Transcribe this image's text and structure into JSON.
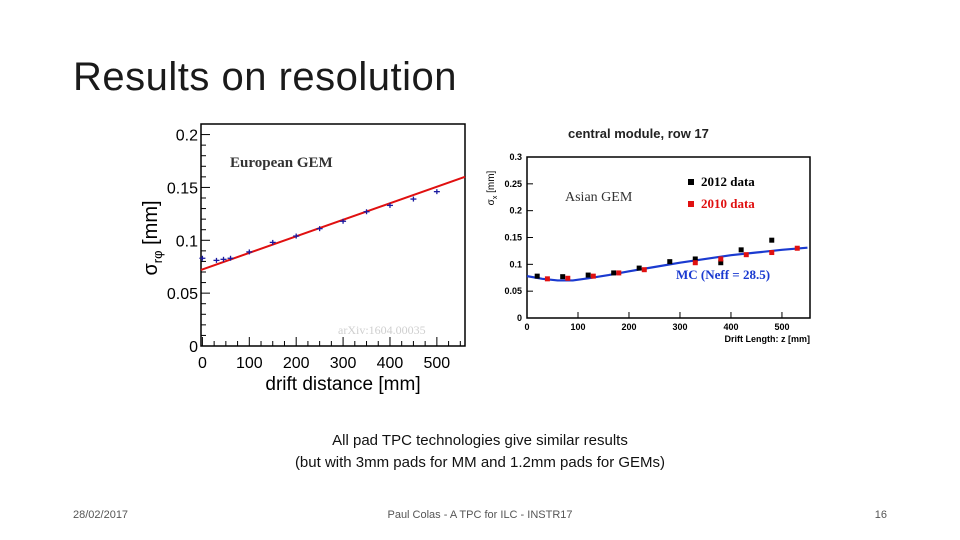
{
  "slide": {
    "title": "Results on resolution",
    "caption_line1": "All pad TPC technologies give similar results",
    "caption_line2": "(but with 3mm pads for MM and 1.2mm pads for GEMs)",
    "footer_date": "28/02/2017",
    "footer_center": "Paul Colas - A TPC for ILC - INSTR17",
    "footer_page": "16"
  },
  "chart_data": [
    {
      "type": "scatter",
      "panel_label": "European GEM",
      "watermark": "arXiv:1604.00035",
      "xlabel": "drift distance [mm]",
      "ylabel_main": "σ",
      "ylabel_sub": "rφ",
      "ylabel_unit": " [mm]",
      "xlim": [
        -3,
        560
      ],
      "ylim": [
        0,
        0.21
      ],
      "xticks": [
        0,
        100,
        200,
        300,
        400,
        500
      ],
      "yticks": [
        0,
        0.05,
        0.1,
        0.15,
        0.2
      ],
      "ytick_labels": [
        "0",
        "0.05",
        "0.1",
        "0.15",
        "0.2"
      ],
      "colors": {
        "points": "#1a1aa0",
        "fit": "#e01010"
      },
      "points": {
        "x": [
          0,
          30,
          45,
          60,
          100,
          150,
          200,
          250,
          300,
          350,
          400,
          450,
          500
        ],
        "y": [
          0.083,
          0.081,
          0.082,
          0.083,
          0.089,
          0.098,
          0.104,
          0.111,
          0.118,
          0.127,
          0.133,
          0.139,
          0.146
        ]
      },
      "fit": {
        "x": [
          -3,
          560
        ],
        "y": [
          0.072,
          0.16
        ]
      }
    },
    {
      "type": "scatter",
      "title": "central module, row 17",
      "panel_label": "Asian GEM",
      "xlabel": "Drift Length: z [mm]",
      "ylabel_main": "σ",
      "ylabel_sub": "x",
      "ylabel_unit": " [mm]",
      "xlim": [
        0,
        555
      ],
      "ylim": [
        0,
        0.3
      ],
      "xticks": [
        0,
        100,
        200,
        300,
        400,
        500
      ],
      "yticks": [
        0,
        0.05,
        0.1,
        0.15,
        0.2,
        0.25,
        0.3
      ],
      "ytick_labels": [
        "0",
        "0.05",
        "0.1",
        "0.15",
        "0.2",
        "0.25",
        "0.3"
      ],
      "legend_position": "top-right",
      "series": [
        {
          "name": "2012 data",
          "color": "#000000",
          "x": [
            20,
            70,
            120,
            170,
            220,
            280,
            330,
            380,
            420,
            480
          ],
          "y": [
            0.078,
            0.077,
            0.08,
            0.084,
            0.093,
            0.105,
            0.11,
            0.103,
            0.127,
            0.145
          ]
        },
        {
          "name": "2010 data",
          "color": "#e01010",
          "x": [
            40,
            80,
            130,
            180,
            230,
            330,
            380,
            430,
            480,
            530
          ],
          "y": [
            0.073,
            0.074,
            0.078,
            0.084,
            0.09,
            0.103,
            0.11,
            0.118,
            0.122,
            0.13
          ]
        }
      ],
      "curve": {
        "name": "MC (Neff = 28.5)",
        "color": "#1a3ad0",
        "x": [
          0,
          30,
          60,
          90,
          120,
          160,
          200,
          250,
          300,
          350,
          400,
          450,
          500,
          550
        ],
        "y": [
          0.078,
          0.073,
          0.07,
          0.07,
          0.074,
          0.08,
          0.087,
          0.095,
          0.103,
          0.11,
          0.117,
          0.122,
          0.127,
          0.131
        ]
      }
    }
  ]
}
